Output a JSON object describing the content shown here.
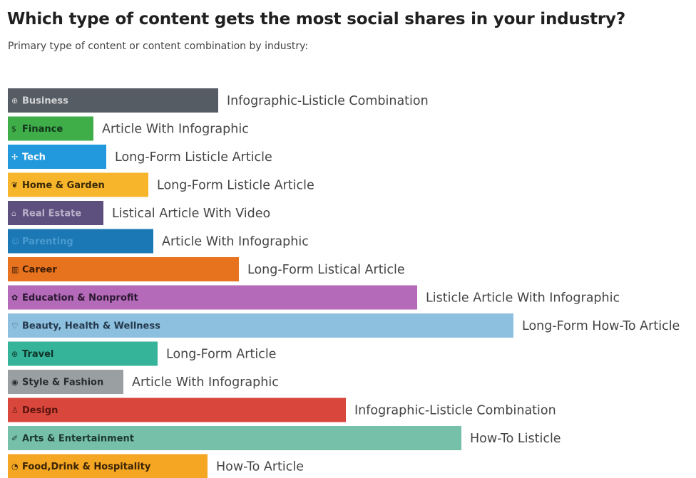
{
  "header": {
    "title": "Which type of content gets the most social shares in your industry?",
    "subtitle": "Primary type of content or content combination by industry:"
  },
  "chart_data": {
    "type": "bar",
    "orientation": "horizontal",
    "grid": false,
    "categories": [
      "Business",
      "Finance",
      "Tech",
      "Home & Garden",
      "Real Estate",
      "Parenting",
      "Career",
      "Education & Nonprofit",
      "Beauty, Health & Wellness",
      "Travel",
      "Style & Fashion",
      "Design",
      "Arts & Entertainment",
      "Food,Drink & Hospitality"
    ],
    "values": [
      295,
      120,
      138,
      197,
      134,
      204,
      324,
      574,
      709,
      210,
      162,
      474,
      636,
      280
    ],
    "content_types": [
      "Infographic-Listicle Combination",
      "Article With Infographic",
      "Long-Form Listicle Article",
      "Long-Form Listicle Article",
      "Listical Article With Video",
      "Article With Infographic",
      "Long-Form Listical Article",
      "Listicle Article With Infographic",
      "Long-Form How-To Article",
      "Long-Form Article",
      "Article With Infographic",
      "Infographic-Listicle Combination",
      "How-To Listicle",
      "How-To Article"
    ],
    "colors": [
      "#565c63",
      "#3fae49",
      "#2399dd",
      "#f7b52c",
      "#5d4f7e",
      "#1b78b4",
      "#e8731f",
      "#b56ab9",
      "#8dc0df",
      "#35b49a",
      "#9aa0a2",
      "#d9473c",
      "#76bfa8",
      "#f5a623"
    ],
    "label_colors": [
      "#d2d4d6",
      "#12331a",
      "#ffffff",
      "#3a2a08",
      "#b8b0c8",
      "#4a9ad0",
      "#3a1c05",
      "#2a1830",
      "#25394d",
      "#0e3328",
      "#2a2c2e",
      "#5a1410",
      "#1d3a30",
      "#3a2405"
    ],
    "icons": [
      "globe-icon",
      "dollar-coin-icon",
      "satellite-icon",
      "leaf-icon",
      "house-icon",
      "baby-icon",
      "bar-chart-icon",
      "apple-icon",
      "heart-icon",
      "compass-icon",
      "button-icon",
      "lamp-icon",
      "brush-icon",
      "plate-icon"
    ],
    "icon_glyphs": [
      "⊕",
      "$",
      "✢",
      "❦",
      "⌂",
      "☺",
      "▥",
      "✿",
      "♡",
      "⊛",
      "◉",
      "♙",
      "✐",
      "◔"
    ]
  }
}
